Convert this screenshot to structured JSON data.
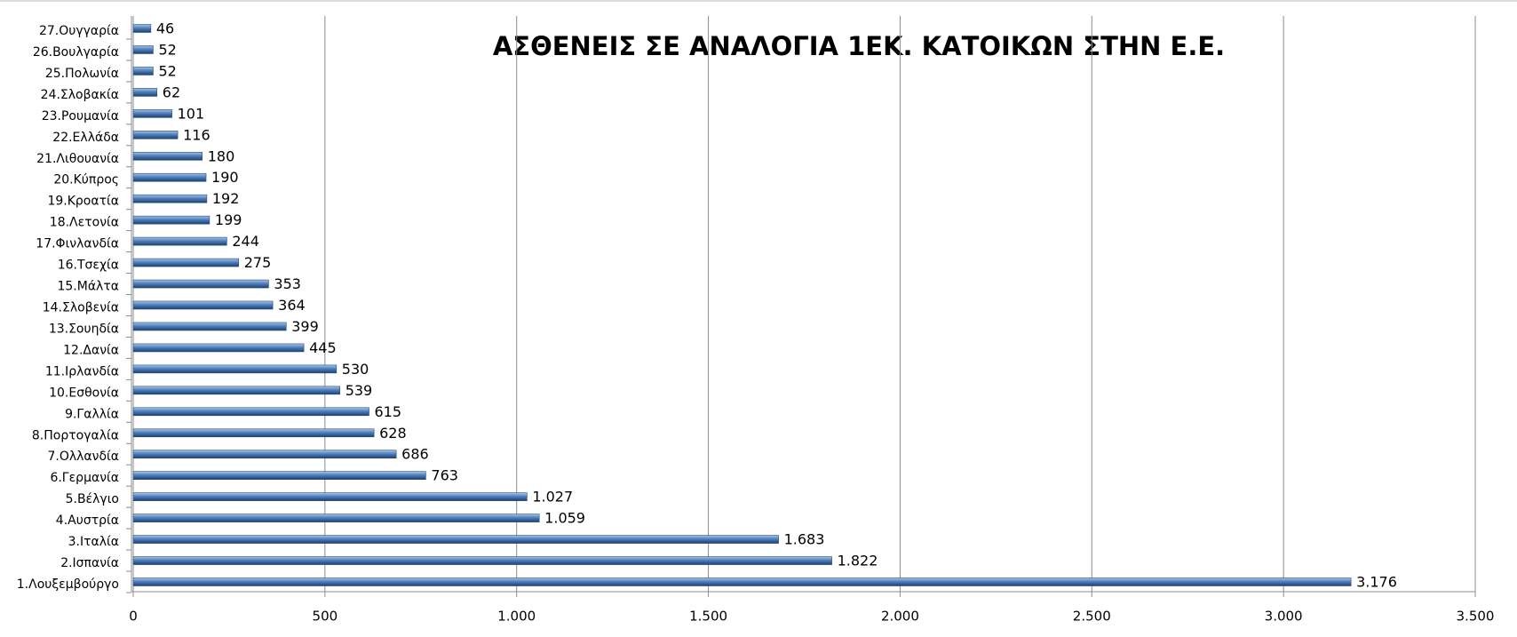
{
  "chart_data": {
    "type": "bar",
    "orientation": "horizontal",
    "title": "ΑΣΘΕΝΕΙΣ ΣΕ ΑΝΑΛΟΓΙΑ 1ΕΚ. ΚΑΤΟΙΚΩΝ ΣΤΗΝ Ε.Ε.",
    "categories": [
      "1.Λουξεμβούργο",
      "2.Ισπανία",
      "3.Ιταλία",
      "4.Αυστρία",
      "5.Βέλγιο",
      "6.Γερμανία",
      "7.Ολλανδία",
      "8.Πορτογαλία",
      "9.Γαλλία",
      "10.Εσθονία",
      "11.Ιρλανδία",
      "12.Δανία",
      "13.Σουηδία",
      "14.Σλοβενία",
      "15.Μάλτα",
      "16.Τσεχία",
      "17.Φινλανδία",
      "18.Λετονία",
      "19.Κροατία",
      "20.Κύπρος",
      "21.Λιθουανία",
      "22.Ελλάδα",
      "23.Ρουμανία",
      "24.Σλοβακία",
      "25.Πολωνία",
      "26.Βουλγαρία",
      "27.Ουγγαρία"
    ],
    "values": [
      3176,
      1822,
      1683,
      1059,
      1027,
      763,
      686,
      628,
      615,
      539,
      530,
      445,
      399,
      364,
      353,
      275,
      244,
      199,
      192,
      190,
      180,
      116,
      101,
      62,
      52,
      52,
      46
    ],
    "value_labels": [
      "3.176",
      "1.822",
      "1.683",
      "1.059",
      "1.027",
      "763",
      "686",
      "628",
      "615",
      "539",
      "530",
      "445",
      "399",
      "364",
      "353",
      "275",
      "244",
      "199",
      "192",
      "190",
      "180",
      "116",
      "101",
      "62",
      "52",
      "52",
      "46"
    ],
    "color": "#4f81bd",
    "xlim": [
      0,
      3500
    ],
    "xticks": [
      0,
      500,
      {
        "value": 1000,
        "label": "1.000"
      },
      {
        "value": 1500,
        "label": "1.500"
      },
      {
        "value": 2000,
        "label": "2.000"
      },
      {
        "value": 2500,
        "label": "2.500"
      },
      {
        "value": 3000,
        "label": "3.000"
      },
      {
        "value": 3500,
        "label": "3.500"
      }
    ],
    "grid": true
  }
}
